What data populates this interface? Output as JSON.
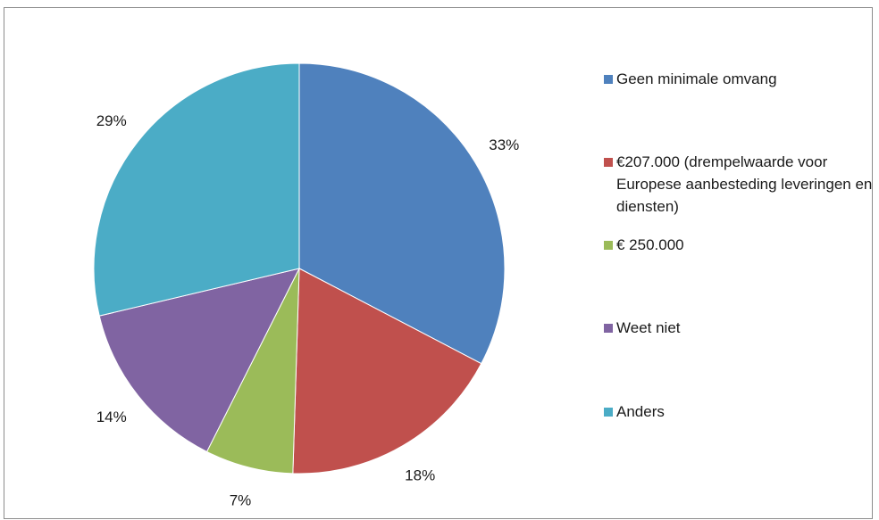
{
  "chart_data": {
    "type": "pie",
    "title": "",
    "slices": [
      {
        "label": "Geen minimale omvang",
        "value": 33,
        "value_label": "33%",
        "color": "#4f81bd"
      },
      {
        "label": "€207.000 (drempelwaarde voor Europese aanbesteding leveringen en diensten)",
        "value": 18,
        "value_label": "18%",
        "color": "#c0504d"
      },
      {
        "label": "€ 250.000",
        "value": 7,
        "value_label": "7%",
        "color": "#9bbb59"
      },
      {
        "label": "Weet niet",
        "value": 14,
        "value_label": "14%",
        "color": "#8064a2"
      },
      {
        "label": "Anders",
        "value": 29,
        "value_label": "29%",
        "color": "#4bacc6"
      }
    ],
    "legend_position": "right",
    "start_angle": "12 o'clock",
    "direction": "clockwise"
  }
}
